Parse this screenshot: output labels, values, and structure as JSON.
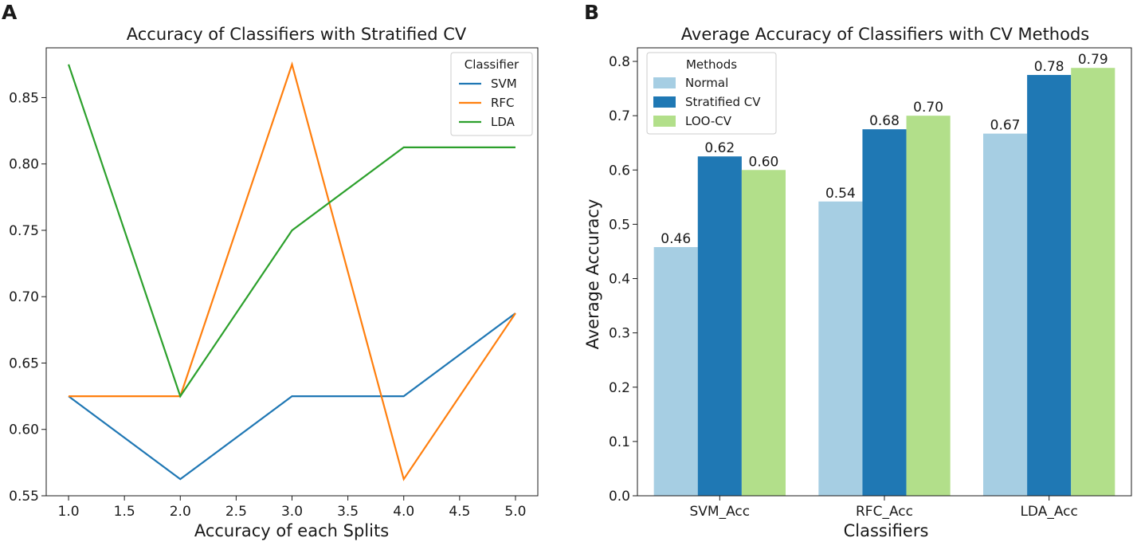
{
  "panels": {
    "a_letter": "A",
    "b_letter": "B"
  },
  "chart_data": [
    {
      "type": "line",
      "title": "Accuracy of Classifiers with Stratified CV",
      "xlabel": "Accuracy of each Splits",
      "ylabel": "",
      "x": [
        1,
        2,
        3,
        4,
        5
      ],
      "xticks": [
        "1.0",
        "1.5",
        "2.0",
        "2.5",
        "3.0",
        "3.5",
        "4.0",
        "4.5",
        "5.0"
      ],
      "yticks": [
        "0.55",
        "0.60",
        "0.65",
        "0.70",
        "0.75",
        "0.80",
        "0.85"
      ],
      "xlim": [
        0.8,
        5.2
      ],
      "ylim": [
        0.55,
        0.8875
      ],
      "grid": false,
      "legend": {
        "title": "Classifier",
        "position": "top-right"
      },
      "series": [
        {
          "name": "SVM",
          "color": "#1f77b4",
          "values": [
            0.625,
            0.5625,
            0.625,
            0.625,
            0.6875
          ]
        },
        {
          "name": "RFC",
          "color": "#ff7f0e",
          "values": [
            0.625,
            0.625,
            0.875,
            0.5625,
            0.6875
          ]
        },
        {
          "name": "LDA",
          "color": "#2ca02c",
          "values": [
            0.875,
            0.625,
            0.75,
            0.8125,
            0.8125
          ]
        }
      ]
    },
    {
      "type": "bar",
      "title": "Average Accuracy of Classifiers with CV Methods",
      "xlabel": "Classifiers",
      "ylabel": "Average Accuracy",
      "categories": [
        "SVM_Acc",
        "RFC_Acc",
        "LDA_Acc"
      ],
      "yticks": [
        "0.0",
        "0.1",
        "0.2",
        "0.3",
        "0.4",
        "0.5",
        "0.6",
        "0.7",
        "0.8"
      ],
      "ylim": [
        0,
        0.825
      ],
      "grid": false,
      "legend": {
        "title": "Methods",
        "position": "top-left"
      },
      "series": [
        {
          "name": "Normal",
          "color": "#a6cee3",
          "values": [
            0.458,
            0.542,
            0.667
          ],
          "labels": [
            "0.46",
            "0.54",
            "0.67"
          ]
        },
        {
          "name": "Stratified CV",
          "color": "#1f78b4",
          "values": [
            0.625,
            0.675,
            0.775
          ],
          "labels": [
            "0.62",
            "0.68",
            "0.78"
          ]
        },
        {
          "name": "LOO-CV",
          "color": "#b2df8a",
          "values": [
            0.6,
            0.7,
            0.788
          ],
          "labels": [
            "0.60",
            "0.70",
            "0.79"
          ]
        }
      ]
    }
  ]
}
